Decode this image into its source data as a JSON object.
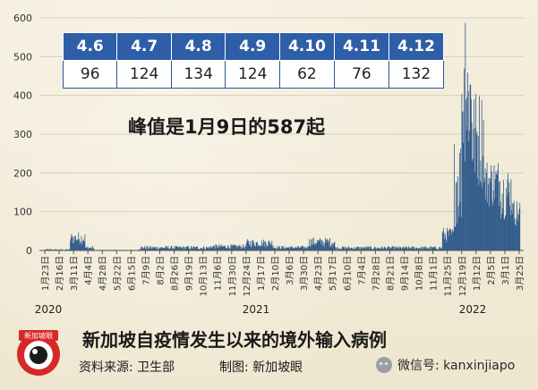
{
  "peak_note": "峰值是1月9日的587起",
  "title": "新加坡自疫情发生以来的境外输入病例",
  "footer": {
    "source": "资料来源:  卫生部",
    "maker": "制图:  新加坡眼",
    "wechat": "微信号: kanxinjiapo"
  },
  "logo": {
    "text": "新加坡眼",
    "icon": "eye-logo-icon"
  },
  "stats_table": {
    "dates": [
      "4.6",
      "4.7",
      "4.8",
      "4.9",
      "4.10",
      "4.11",
      "4.12"
    ],
    "values": [
      "96",
      "124",
      "134",
      "124",
      "62",
      "76",
      "132"
    ]
  },
  "chart_data": {
    "type": "bar",
    "title": "新加坡自疫情发生以来的境外输入病例",
    "xlabel": "",
    "ylabel": "",
    "ylim": [
      0,
      600
    ],
    "yticks": [
      0,
      100,
      200,
      300,
      400,
      500,
      600
    ],
    "x_tick_labels": [
      "1月23日",
      "2月16日",
      "3月11日",
      "4月4日",
      "4月28日",
      "5月22日",
      "6月15日",
      "7月9日",
      "8月2日",
      "8月26日",
      "9月19日",
      "10月13日",
      "11月6日",
      "11月30日",
      "12月24日",
      "1月17日",
      "2月10日",
      "3月6日",
      "3月30日",
      "4月23日",
      "5月17日",
      "6月10日",
      "7月4日",
      "7月28日",
      "8月21日",
      "9月14日",
      "10月8日",
      "11月1日",
      "11月25日",
      "12月19日",
      "1月12日",
      "2月5日",
      "3月1日",
      "3月25日"
    ],
    "year_labels": [
      "2020",
      "2021",
      "2022"
    ],
    "bar_color": "#2e5a8a",
    "start_date": "2020-01-23",
    "peak": {
      "date": "2022-01-09",
      "value": 587
    },
    "series": [
      {
        "segments": [
          {
            "from": "2020-01-23",
            "to": "2020-03-05",
            "min": 0,
            "max": 4
          },
          {
            "from": "2020-03-06",
            "to": "2020-03-31",
            "min": 15,
            "max": 48
          },
          {
            "from": "2020-04-01",
            "to": "2020-04-15",
            "min": 1,
            "max": 12
          },
          {
            "from": "2020-04-16",
            "to": "2020-06-30",
            "min": 0,
            "max": 2
          },
          {
            "from": "2020-07-01",
            "to": "2020-10-31",
            "min": 2,
            "max": 12
          },
          {
            "from": "2020-11-01",
            "to": "2020-12-31",
            "min": 4,
            "max": 16
          },
          {
            "from": "2021-01-01",
            "to": "2021-02-15",
            "min": 8,
            "max": 30
          },
          {
            "from": "2021-02-16",
            "to": "2021-04-15",
            "min": 3,
            "max": 12
          },
          {
            "from": "2021-04-16",
            "to": "2021-05-31",
            "min": 8,
            "max": 34
          },
          {
            "from": "2021-06-01",
            "to": "2021-11-30",
            "min": 2,
            "max": 11
          },
          {
            "from": "2021-12-01",
            "to": "2021-12-20",
            "min": 20,
            "max": 60
          },
          {
            "from": "2021-12-21",
            "to": "2022-01-02",
            "min": 60,
            "max": 300
          },
          {
            "from": "2022-01-03",
            "to": "2022-01-20",
            "min": 220,
            "max": 570
          },
          {
            "from": "2022-01-21",
            "to": "2022-02-10",
            "min": 160,
            "max": 420
          },
          {
            "from": "2022-02-11",
            "to": "2022-03-10",
            "min": 110,
            "max": 240
          },
          {
            "from": "2022-03-11",
            "to": "2022-03-31",
            "min": 80,
            "max": 220
          },
          {
            "from": "2022-04-01",
            "to": "2022-04-12",
            "min": 62,
            "max": 134
          }
        ]
      }
    ]
  }
}
